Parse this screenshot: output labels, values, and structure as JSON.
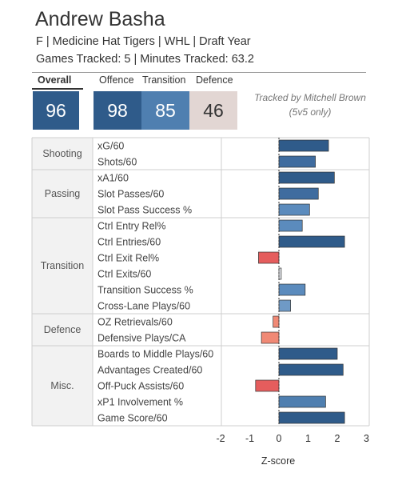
{
  "header": {
    "player_name": "Andrew Basha",
    "info_line": "F | Medicine Hat Tigers | WHL | Draft Year",
    "tracked_line": "Games Tracked: 5 | Minutes Tracked: 63.2",
    "note_line1": "Tracked by Mitchell Brown",
    "note_line2": "(5v5 only)"
  },
  "ratings": {
    "overall_label": "Overall",
    "overall_value": "96",
    "overall_color": "#2f5b8a",
    "offence_label": "Offence",
    "offence_value": "98",
    "offence_color": "#2f5b8a",
    "transition_label": "Transition",
    "transition_value": "85",
    "transition_color": "#4f7fb0",
    "defence_label": "Defence",
    "defence_value": "46",
    "defence_color": "#e2d6d3"
  },
  "chart_data": {
    "type": "bar",
    "orientation": "horizontal",
    "xlabel": "Z-score",
    "xlim": [
      -2.2,
      3.2
    ],
    "xticks": [
      -2,
      -1,
      0,
      1,
      2,
      3
    ],
    "grid": "row and group borders",
    "groups": [
      {
        "name": "Shooting",
        "metrics": [
          {
            "label": "xG/60",
            "value": 1.7,
            "color": "#2f5b8a"
          },
          {
            "label": "Shots/60",
            "value": 1.25,
            "color": "#3f6c9f"
          }
        ]
      },
      {
        "name": "Passing",
        "metrics": [
          {
            "label": "xA1/60",
            "value": 1.9,
            "color": "#2f5b8a"
          },
          {
            "label": "Slot Passes/60",
            "value": 1.35,
            "color": "#3f6c9f"
          },
          {
            "label": "Slot Pass Success %",
            "value": 1.05,
            "color": "#5b8bbd"
          }
        ]
      },
      {
        "name": "Transition",
        "metrics": [
          {
            "label": "Ctrl Entry Rel%",
            "value": 0.8,
            "color": "#5b8bbd"
          },
          {
            "label": "Ctrl Entries/60",
            "value": 2.25,
            "color": "#2f5b8a"
          },
          {
            "label": "Ctrl Exit Rel%",
            "value": -0.7,
            "color": "#e55d5d"
          },
          {
            "label": "Ctrl Exits/60",
            "value": 0.08,
            "color": "#e4e7ec"
          },
          {
            "label": "Transition Success %",
            "value": 0.9,
            "color": "#5b8bbd"
          },
          {
            "label": "Cross-Lane Plays/60",
            "value": 0.4,
            "color": "#6f9ac6"
          }
        ]
      },
      {
        "name": "Defence",
        "metrics": [
          {
            "label": "OZ Retrievals/60",
            "value": -0.2,
            "color": "#f08975"
          },
          {
            "label": "Defensive Plays/CA",
            "value": -0.6,
            "color": "#f08975"
          }
        ]
      },
      {
        "name": "Misc.",
        "metrics": [
          {
            "label": "Boards to Middle Plays/60",
            "value": 2.0,
            "color": "#2f5b8a"
          },
          {
            "label": "Advantages Created/60",
            "value": 2.2,
            "color": "#2f5b8a"
          },
          {
            "label": "Off-Puck Assists/60",
            "value": -0.8,
            "color": "#e55d5d"
          },
          {
            "label": "xP1 Involvement %",
            "value": 1.6,
            "color": "#4f7fb0"
          },
          {
            "label": "Game Score/60",
            "value": 2.25,
            "color": "#2f5b8a"
          }
        ]
      }
    ]
  }
}
